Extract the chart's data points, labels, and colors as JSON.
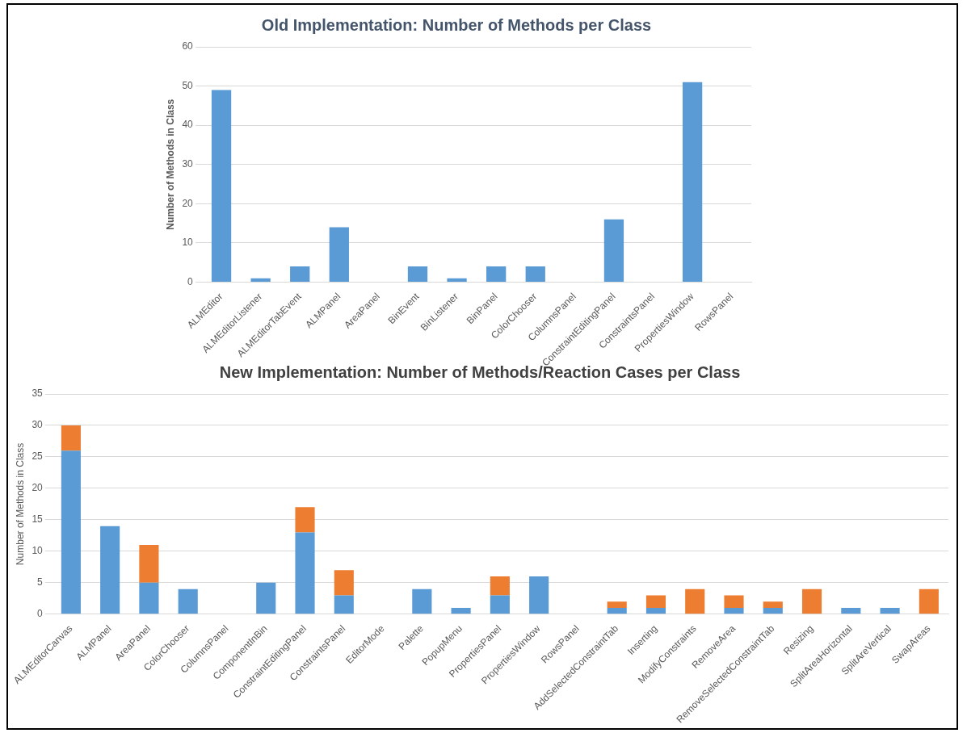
{
  "chart_data": [
    {
      "type": "bar",
      "title": "Old Implementation: Number of Methods per Class",
      "ylabel": "Number of Methods in Class",
      "categories": [
        "ALMEditor",
        "ALMEditorListener",
        "ALMEditorTabEvent",
        "ALMPanel",
        "AreaPanel",
        "BinEvent",
        "BinListener",
        "BinPanel",
        "ColorChooser",
        "ColumnsPanel",
        "ConstraintEditingPanel",
        "ConstraintsPanel",
        "PropertiesWindow",
        "RowsPanel"
      ],
      "values": [
        49,
        1,
        4,
        14,
        0,
        4,
        1,
        4,
        4,
        0,
        16,
        0,
        51,
        0
      ],
      "color": "#5b9bd5",
      "ylim": [
        0,
        60
      ],
      "yticks": [
        0,
        10,
        20,
        30,
        40,
        50,
        60
      ],
      "grid": "y",
      "legend": false
    },
    {
      "type": "bar",
      "title": "New Implementation: Number of Methods/Reaction Cases per Class",
      "ylabel": "Number of Methods in Class",
      "categories": [
        "ALMEditorCanvas",
        "ALMPanel",
        "AreaPanel",
        "ColorChooser",
        "ColumnsPanel",
        "ComponentInBin",
        "ConstraintEditingPanel",
        "ConstraintsPanel",
        "EditorMode",
        "Palette",
        "PopupMenu",
        "PropertiesPanel",
        "PropertiesWindow",
        "RowsPanel",
        "AddSelectedConstraintTab",
        "Inserting",
        "ModifyConstraints",
        "RemoveArea",
        "RemoveSelectedConstraintTab",
        "Resizing",
        "SplitAreaHorizontal",
        "SplitAreVertical",
        "SwapAreas"
      ],
      "stacked": true,
      "series": [
        {
          "color": "#5b9bd5",
          "values": [
            26,
            14,
            5,
            4,
            0,
            5,
            13,
            3,
            0,
            4,
            1,
            3,
            6,
            0,
            1,
            1,
            0,
            1,
            1,
            0,
            1,
            1,
            0
          ]
        },
        {
          "color": "#ed7d31",
          "values": [
            4,
            0,
            6,
            0,
            0,
            0,
            4,
            4,
            0,
            0,
            0,
            3,
            0,
            0,
            1,
            2,
            4,
            2,
            1,
            4,
            0,
            0,
            4
          ]
        }
      ],
      "ylim": [
        0,
        35
      ],
      "yticks": [
        0,
        5,
        10,
        15,
        20,
        25,
        30,
        35
      ],
      "grid": "y",
      "legend": false
    }
  ]
}
